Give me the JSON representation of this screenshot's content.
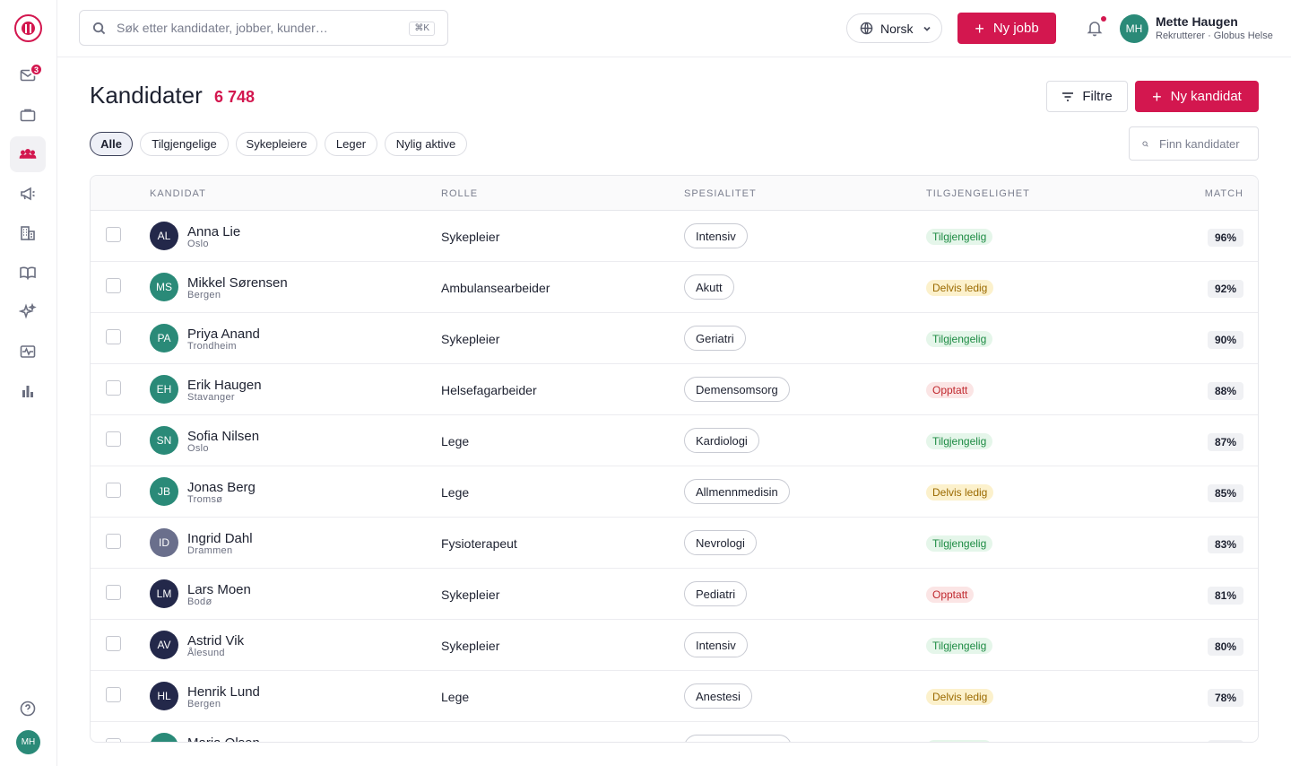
{
  "app": {
    "logo": "cross-logo"
  },
  "sidebar": {
    "items": [
      {
        "icon": "mail-icon",
        "badge": "3"
      },
      {
        "icon": "briefcase-icon"
      },
      {
        "icon": "users-icon",
        "active": true
      },
      {
        "icon": "megaphone-icon"
      },
      {
        "icon": "building-icon"
      },
      {
        "icon": "book-icon"
      },
      {
        "icon": "sparkles-icon"
      },
      {
        "icon": "activity-icon"
      },
      {
        "icon": "bar-chart-icon"
      }
    ],
    "help_icon": "help-icon",
    "avatar_initials": "MH"
  },
  "topbar": {
    "search_placeholder": "Søk etter kandidater, jobber, kunder…",
    "search_shortcut": "⌘K",
    "language": "Norsk",
    "new_job_label": "Ny jobb",
    "user": {
      "initials": "MH",
      "name": "Mette Haugen",
      "role": "Rekrutterer · Globus Helse"
    }
  },
  "header": {
    "title": "Kandidater",
    "count": "6 748",
    "filter_label": "Filtre",
    "new_candidate_label": "Ny kandidat"
  },
  "filters": {
    "chips": [
      "Alle",
      "Tilgjengelige",
      "Sykepleiere",
      "Leger",
      "Nylig aktive"
    ],
    "active": "Alle",
    "find_placeholder": "Finn kandidater"
  },
  "table": {
    "columns": [
      "KANDIDAT",
      "ROLLE",
      "SPESIALITET",
      "TILGJENGELIGHET",
      "MATCH"
    ],
    "rows": [
      {
        "initials": "AL",
        "name": "Anna Lie",
        "city": "Oslo",
        "role": "Sykepleier",
        "specialty": "Intensiv",
        "status": "Tilgjengelig",
        "match": "96%"
      },
      {
        "initials": "MS",
        "name": "Mikkel Sørensen",
        "city": "Bergen",
        "role": "Ambulansearbeider",
        "specialty": "Akutt",
        "status": "Delvis ledig",
        "match": "92%"
      },
      {
        "initials": "PA",
        "name": "Priya Anand",
        "city": "Trondheim",
        "role": "Sykepleier",
        "specialty": "Geriatri",
        "status": "Tilgjengelig",
        "match": "90%"
      },
      {
        "initials": "EH",
        "name": "Erik Haugen",
        "city": "Stavanger",
        "role": "Helsefagarbeider",
        "specialty": "Demensomsorg",
        "status": "Opptatt",
        "match": "88%"
      },
      {
        "initials": "SN",
        "name": "Sofia Nilsen",
        "city": "Oslo",
        "role": "Lege",
        "specialty": "Kardiologi",
        "status": "Tilgjengelig",
        "match": "87%"
      },
      {
        "initials": "JB",
        "name": "Jonas Berg",
        "city": "Tromsø",
        "role": "Lege",
        "specialty": "Allmennmedisin",
        "status": "Delvis ledig",
        "match": "85%"
      },
      {
        "initials": "ID",
        "name": "Ingrid Dahl",
        "city": "Drammen",
        "role": "Fysioterapeut",
        "specialty": "Nevrologi",
        "status": "Tilgjengelig",
        "match": "83%"
      },
      {
        "initials": "LM",
        "name": "Lars Moen",
        "city": "Bodø",
        "role": "Sykepleier",
        "specialty": "Pediatri",
        "status": "Opptatt",
        "match": "81%"
      },
      {
        "initials": "AV",
        "name": "Astrid Vik",
        "city": "Ålesund",
        "role": "Sykepleier",
        "specialty": "Intensiv",
        "status": "Tilgjengelig",
        "match": "80%"
      },
      {
        "initials": "HL",
        "name": "Henrik Lund",
        "city": "Bergen",
        "role": "Lege",
        "specialty": "Anestesi",
        "status": "Delvis ledig",
        "match": "78%"
      },
      {
        "initials": "",
        "name": "Maria Olsen",
        "city": "",
        "role": "",
        "specialty": "",
        "status": "Tilgjengelig",
        "match": ""
      }
    ]
  },
  "colors": {
    "accent": "#d3174f",
    "avatar_navy": "#23284a",
    "avatar_teal": "#2a8a78",
    "avatar_slate": "#6a6f8c"
  }
}
